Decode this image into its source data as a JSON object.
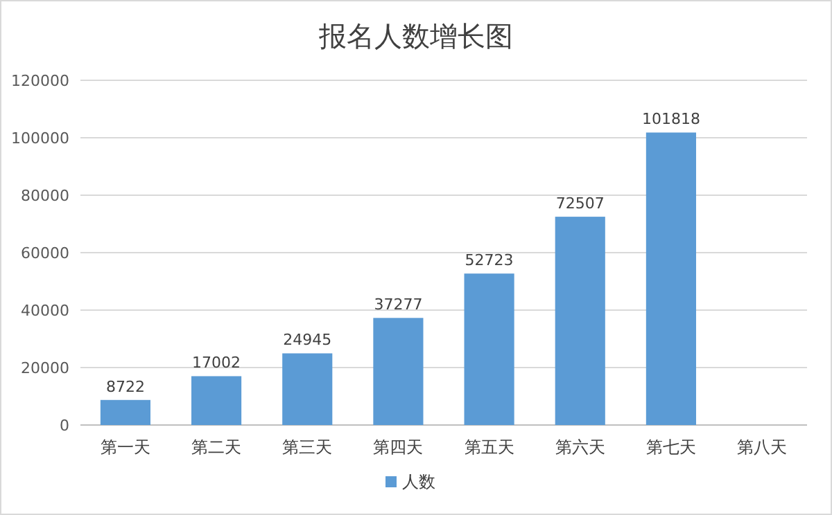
{
  "chart_data": {
    "type": "bar",
    "title": "报名人数增长图",
    "categories": [
      "第一天",
      "第二天",
      "第三天",
      "第四天",
      "第五天",
      "第六天",
      "第七天",
      "第八天"
    ],
    "series": [
      {
        "name": "人数",
        "color": "#5b9bd5",
        "values": [
          8722,
          17002,
          24945,
          37277,
          52723,
          72507,
          101818,
          null
        ]
      }
    ],
    "ylim": [
      0,
      120000
    ],
    "yticks": [
      0,
      20000,
      40000,
      60000,
      80000,
      100000,
      120000
    ],
    "grid": "y",
    "legend": "bottom",
    "data_labels": true
  }
}
